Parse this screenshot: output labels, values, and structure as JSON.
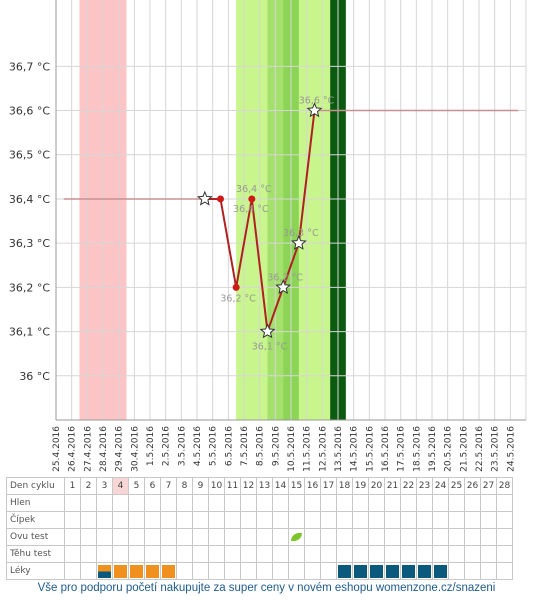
{
  "chart_data": {
    "type": "line",
    "y_unit": "°C",
    "ylim": [
      35.9,
      36.85
    ],
    "yticks": [
      "36 °C",
      "36,1 °C",
      "36,2 °C",
      "36,3 °C",
      "36,4 °C",
      "36,5 °C",
      "36,6 °C",
      "36,7 °C"
    ],
    "ytick_values": [
      36.0,
      36.1,
      36.2,
      36.3,
      36.4,
      36.5,
      36.6,
      36.7
    ],
    "dates": [
      "25.4.2016",
      "26.4.2016",
      "27.4.2016",
      "28.4.2016",
      "29.4.2016",
      "30.4.2016",
      "1.5.2016",
      "2.5.2016",
      "3.5.2016",
      "4.5.2016",
      "5.5.2016",
      "6.5.2016",
      "7.5.2016",
      "8.5.2016",
      "9.5.2016",
      "10.5.2016",
      "11.5.2016",
      "12.5.2016",
      "13.5.2016",
      "14.5.2016",
      "15.5.2016",
      "16.5.2016",
      "17.5.2016",
      "18.5.2016",
      "19.5.2016",
      "20.5.2016",
      "21.5.2016",
      "22.5.2016",
      "23.5.2016",
      "24.5.2016"
    ],
    "grid": true,
    "bands": [
      {
        "from": "26.4.2016",
        "to": "29.4.2016",
        "color": "#fcc4c4"
      },
      {
        "from": "6.5.2016",
        "to": "12.5.2016",
        "color": "#c8f58c"
      },
      {
        "from": "8.5.2016",
        "to": "9.5.2016",
        "color": "#a4e06c"
      },
      {
        "from": "9.5.2016",
        "to": "10.5.2016",
        "color": "#8cd456"
      },
      {
        "from": "12.5.2016",
        "to": "13.5.2016",
        "color": "#0c5a10"
      }
    ],
    "series": [
      {
        "points": [
          {
            "x": "4.5.2016",
            "y": 36.4,
            "marker": "star",
            "label": ""
          },
          {
            "x": "5.5.2016",
            "y": 36.4,
            "marker": "dot",
            "label": ""
          },
          {
            "x": "6.5.2016",
            "y": 36.2,
            "marker": "dot",
            "label": "36,2 °C"
          },
          {
            "x": "7.5.2016",
            "y": 36.4,
            "marker": "dot",
            "label": "36,4 °C"
          },
          {
            "x": "8.5.2016",
            "y": 36.1,
            "marker": "star",
            "label": "36,1 °C"
          },
          {
            "x": "9.5.2016",
            "y": 36.2,
            "marker": "star",
            "label": "36,2 °C"
          },
          {
            "x": "10.5.2016",
            "y": 36.3,
            "marker": "star",
            "label": "36,3 °C"
          },
          {
            "x": "11.5.2016",
            "y": 36.6,
            "marker": "star",
            "label": "36,6 °C"
          }
        ],
        "color": "#b02020"
      }
    ],
    "extra_labels": [
      {
        "x": "7.5.2016",
        "y": 36.4,
        "text": "36,4 °C"
      }
    ],
    "coverline_before": {
      "from": "25.4.2016",
      "to": "4.5.2016",
      "y": 36.4
    },
    "coverline_after": {
      "from": "11.5.2016",
      "to": "24.5.2016",
      "y": 36.6
    }
  },
  "cycle_table": {
    "rows": [
      "Den cyklu",
      "Hlen",
      "Čípek",
      "Ovu test",
      "Těhu test",
      "Léky"
    ],
    "days": [
      "1",
      "2",
      "3",
      "4",
      "5",
      "6",
      "7",
      "8",
      "9",
      "10",
      "11",
      "12",
      "13",
      "14",
      "15",
      "16",
      "17",
      "18",
      "19",
      "20",
      "21",
      "22",
      "23",
      "24",
      "25",
      "26",
      "27",
      "28"
    ],
    "highlight_day": "4",
    "ovu_test_day": "15",
    "meds": {
      "3": "split",
      "4": "orange",
      "5": "orange",
      "6": "orange",
      "7": "orange",
      "18": "blue",
      "19": "blue",
      "20": "blue",
      "21": "blue",
      "22": "blue",
      "23": "blue",
      "24": "blue"
    },
    "ovu_icon": "leaf-icon",
    "colors": {
      "orange": "#f0901e",
      "blue": "#0b5a7e",
      "highlight": "#f8d6d6"
    }
  },
  "footer_text": "Vše pro podporu početí nakupujte za super ceny v novém eshopu womenzone.cz/snazeni"
}
